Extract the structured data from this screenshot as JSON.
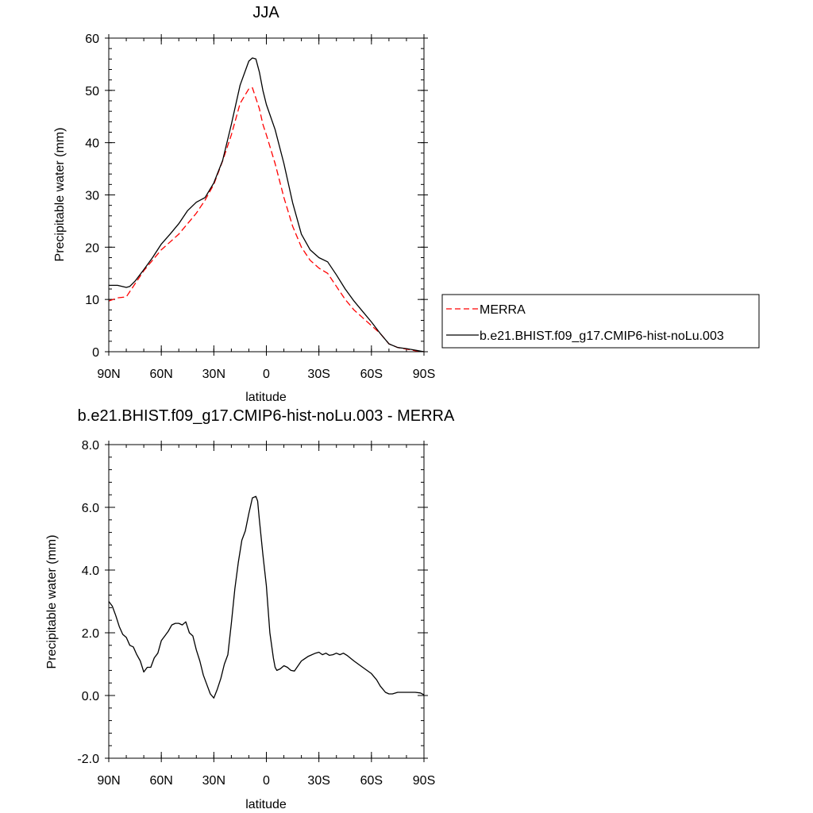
{
  "chart_data": [
    {
      "type": "line",
      "title": "JJA",
      "xlabel": "latitude",
      "ylabel": "Precipitable water (mm)",
      "xlim": [
        90,
        -90
      ],
      "ylim": [
        0,
        60
      ],
      "x_ticks": [
        {
          "value": 90,
          "label": "90N"
        },
        {
          "value": 60,
          "label": "60N"
        },
        {
          "value": 30,
          "label": "30N"
        },
        {
          "value": 0,
          "label": "0"
        },
        {
          "value": -30,
          "label": "30S"
        },
        {
          "value": -60,
          "label": "60S"
        },
        {
          "value": -90,
          "label": "90S"
        }
      ],
      "y_ticks": [
        {
          "value": 0,
          "label": "0"
        },
        {
          "value": 10,
          "label": "10"
        },
        {
          "value": 20,
          "label": "20"
        },
        {
          "value": 30,
          "label": "30"
        },
        {
          "value": 40,
          "label": "40"
        },
        {
          "value": 50,
          "label": "50"
        },
        {
          "value": 60,
          "label": "60"
        }
      ],
      "legend_position": "right",
      "series": [
        {
          "name": "MERRA",
          "color": "#ff0000",
          "style": "dashed",
          "x": [
            90,
            85,
            80,
            75,
            70,
            65,
            60,
            55,
            50,
            45,
            40,
            35,
            30,
            25,
            20,
            15,
            10,
            8,
            6,
            4,
            2,
            0,
            -5,
            -10,
            -15,
            -20,
            -25,
            -30,
            -35,
            -40,
            -45,
            -50,
            -55,
            -60,
            -65,
            -70,
            -75,
            -80,
            -85,
            -90
          ],
          "y": [
            9.7,
            10.3,
            10.5,
            13,
            15.5,
            17.5,
            19.5,
            21,
            22.5,
            24.5,
            26.5,
            29,
            32,
            36.5,
            41.5,
            47.5,
            50.3,
            50.5,
            48.5,
            46.5,
            43.5,
            41.5,
            36,
            29.5,
            24,
            20,
            17.5,
            16,
            15,
            12.5,
            10,
            8,
            6.5,
            5,
            3.5,
            1.5,
            0.8,
            0.5,
            0.2,
            0
          ]
        },
        {
          "name": "b.e21.BHIST.f09_g17.CMIP6-hist-noLu.003",
          "color": "#000000",
          "style": "solid",
          "x": [
            90,
            85,
            80,
            78,
            75,
            70,
            65,
            60,
            55,
            50,
            45,
            40,
            35,
            30,
            25,
            20,
            15,
            10,
            8,
            6,
            4,
            2,
            0,
            -5,
            -10,
            -15,
            -20,
            -25,
            -30,
            -35,
            -40,
            -45,
            -50,
            -55,
            -60,
            -65,
            -70,
            -75,
            -80,
            -85,
            -90
          ],
          "y": [
            12.7,
            12.7,
            12.3,
            12.5,
            13.5,
            15.7,
            18,
            20.6,
            22.5,
            24.5,
            27,
            28.6,
            29.5,
            32.3,
            36.6,
            43.5,
            51,
            55.6,
            56.2,
            56,
            53.5,
            50,
            47.3,
            42.5,
            36,
            28.5,
            22.5,
            19.5,
            18,
            17.2,
            14.7,
            12,
            9.7,
            7.7,
            5.7,
            3.5,
            1.5,
            0.8,
            0.6,
            0.3,
            0
          ]
        }
      ]
    },
    {
      "type": "line",
      "title": "b.e21.BHIST.f09_g17.CMIP6-hist-noLu.003 - MERRA",
      "xlabel": "latitude",
      "ylabel": "Precipitable water (mm)",
      "xlim": [
        90,
        -90
      ],
      "ylim": [
        -2.0,
        8.0
      ],
      "x_ticks": [
        {
          "value": 90,
          "label": "90N"
        },
        {
          "value": 60,
          "label": "60N"
        },
        {
          "value": 30,
          "label": "30N"
        },
        {
          "value": 0,
          "label": "0"
        },
        {
          "value": -30,
          "label": "30S"
        },
        {
          "value": -60,
          "label": "60S"
        },
        {
          "value": -90,
          "label": "90S"
        }
      ],
      "y_ticks": [
        {
          "value": -2.0,
          "label": "-2.0"
        },
        {
          "value": 0.0,
          "label": "0.0"
        },
        {
          "value": 2.0,
          "label": "2.0"
        },
        {
          "value": 4.0,
          "label": "4.0"
        },
        {
          "value": 6.0,
          "label": "6.0"
        },
        {
          "value": 8.0,
          "label": "8.0"
        }
      ],
      "series": [
        {
          "color": "#000000",
          "style": "solid",
          "x": [
            90,
            88,
            86,
            84,
            82,
            80,
            78,
            76,
            74,
            72,
            70,
            68,
            66,
            64,
            62,
            60,
            58,
            56,
            54,
            52,
            50,
            48,
            46,
            44,
            42,
            40,
            38,
            36,
            34,
            32,
            30,
            28,
            26,
            24,
            22,
            20,
            18,
            16,
            14,
            12,
            10,
            8,
            6,
            5,
            4,
            2,
            0,
            -2,
            -4,
            -5,
            -6,
            -8,
            -10,
            -12,
            -14,
            -16,
            -20,
            -24,
            -28,
            -30,
            -32,
            -34,
            -36,
            -38,
            -40,
            -42,
            -44,
            -46,
            -50,
            -55,
            -60,
            -63,
            -65,
            -68,
            -70,
            -72,
            -75,
            -80,
            -85,
            -88,
            -90
          ],
          "y": [
            3.0,
            2.85,
            2.55,
            2.2,
            1.95,
            1.85,
            1.6,
            1.55,
            1.3,
            1.1,
            0.75,
            0.9,
            0.9,
            1.2,
            1.35,
            1.75,
            1.9,
            2.05,
            2.25,
            2.3,
            2.3,
            2.25,
            2.35,
            2.0,
            1.9,
            1.45,
            1.1,
            0.65,
            0.35,
            0.05,
            -0.08,
            0.2,
            0.55,
            1.0,
            1.3,
            2.3,
            3.4,
            4.25,
            4.95,
            5.25,
            5.8,
            6.3,
            6.35,
            6.2,
            5.6,
            4.5,
            3.5,
            2.0,
            1.2,
            0.9,
            0.8,
            0.85,
            0.95,
            0.9,
            0.8,
            0.78,
            1.1,
            1.25,
            1.35,
            1.38,
            1.3,
            1.35,
            1.28,
            1.3,
            1.35,
            1.3,
            1.35,
            1.28,
            1.1,
            0.9,
            0.7,
            0.5,
            0.3,
            0.1,
            0.05,
            0.05,
            0.1,
            0.1,
            0.1,
            0.08,
            0.02
          ]
        }
      ]
    }
  ]
}
